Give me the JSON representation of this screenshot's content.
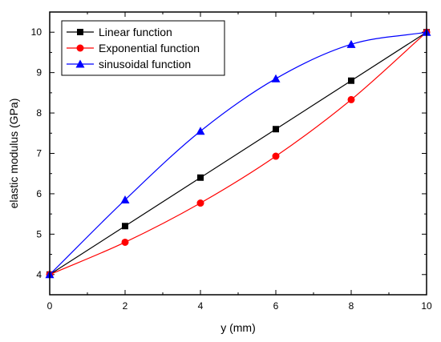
{
  "chart_data": {
    "type": "line",
    "title": "",
    "xlabel": "y (mm)",
    "ylabel": "elastic modulus (GPa)",
    "xlim": [
      0,
      10
    ],
    "ylim": [
      3.5,
      10.5
    ],
    "xticks": [
      "0",
      "2",
      "4",
      "6",
      "8",
      "10"
    ],
    "yticks": [
      "4",
      "5",
      "6",
      "7",
      "8",
      "9",
      "10"
    ],
    "grid": false,
    "legend_position": "top-left",
    "x": [
      0,
      2,
      4,
      6,
      8,
      10
    ],
    "series": [
      {
        "name": "Linear function",
        "color": "#000000",
        "marker": "square",
        "values": [
          4.0,
          5.2,
          6.4,
          7.6,
          8.8,
          10.0
        ]
      },
      {
        "name": "Exponential function",
        "color": "#ff0000",
        "marker": "circle",
        "values": [
          4.0,
          4.8,
          5.77,
          6.93,
          8.33,
          10.0
        ]
      },
      {
        "name": "sinusoidal function",
        "color": "#0000ff",
        "marker": "triangle",
        "values": [
          4.0,
          5.85,
          7.55,
          8.85,
          9.7,
          10.0
        ]
      }
    ]
  }
}
